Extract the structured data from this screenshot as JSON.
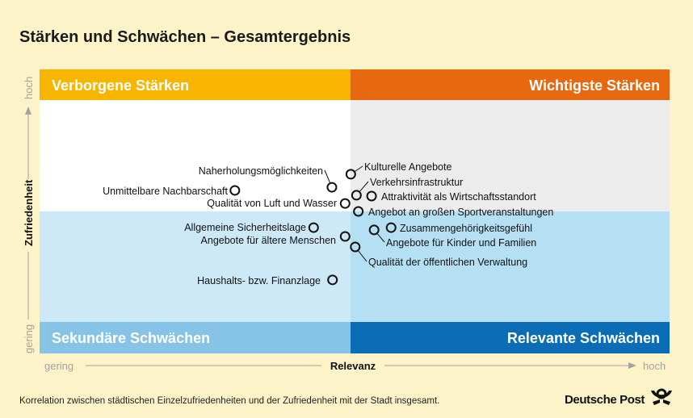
{
  "chart_data": {
    "type": "scatter",
    "title": "Stärken und Schwächen – Gesamtergebnis",
    "xlabel": "Relevanz",
    "ylabel": "Zufriedenheit",
    "x_low_label": "gering",
    "x_high_label": "hoch",
    "y_low_label": "gering",
    "y_high_label": "hoch",
    "xlim": [
      0,
      100
    ],
    "ylim": [
      0,
      100
    ],
    "grid": false,
    "quadrants": {
      "top_left": {
        "label": "Verborgene Stärken",
        "header_color": "#f7b500",
        "fill_color": "#ffffff"
      },
      "top_right": {
        "label": "Wichtigste Stärken",
        "header_color": "#e8680f",
        "fill_color": "#ececec"
      },
      "bottom_left": {
        "label": "Sekundäre Schwächen",
        "header_color": "#86c3e6",
        "fill_color": "#cde9f8"
      },
      "bottom_right": {
        "label": "Relevante Schwächen",
        "header_color": "#0b6db6",
        "fill_color": "#b5e0f4"
      }
    },
    "points": [
      {
        "label": "Kulturelle Angebote",
        "x": 49.4,
        "y": 63.1
      },
      {
        "label": "Naherholungsmöglichkeiten",
        "x": 46.4,
        "y": 58.5
      },
      {
        "label": "Unmittelbare Nachbarschaft",
        "x": 31.0,
        "y": 57.4
      },
      {
        "label": "Verkehrsinfrastruktur",
        "x": 50.3,
        "y": 55.7
      },
      {
        "label": "Attraktivität als Wirtschaftsstandort",
        "x": 52.7,
        "y": 55.4
      },
      {
        "label": "Qualität von Luft und Wasser",
        "x": 48.5,
        "y": 52.8
      },
      {
        "label": "Angebot an großen Sportveranstaltungen",
        "x": 50.6,
        "y": 50.0
      },
      {
        "label": "Allgemeine Sicherheitslage",
        "x": 43.5,
        "y": 44.3
      },
      {
        "label": "Zusammengehörigkeitsgefühl",
        "x": 55.8,
        "y": 44.3
      },
      {
        "label": "Angebote für Kinder und Familien",
        "x": 53.1,
        "y": 43.5
      },
      {
        "label": "Angebote für ältere Menschen",
        "x": 48.5,
        "y": 41.2
      },
      {
        "label": "Qualität der öffentlichen Verwaltung",
        "x": 50.1,
        "y": 37.5
      },
      {
        "label": "Haushalts- bzw. Finanzlage",
        "x": 46.5,
        "y": 25.9
      }
    ]
  },
  "footer": {
    "note": "Korrelation zwischen städtischen Einzelzufriedenheiten und der Zufriedenheit mit der Stadt insgesamt.",
    "logo_text": "Deutsche Post"
  },
  "colors": {
    "background": "#fdf3c9",
    "axis": "#a3a3a3",
    "text": "#111111"
  }
}
